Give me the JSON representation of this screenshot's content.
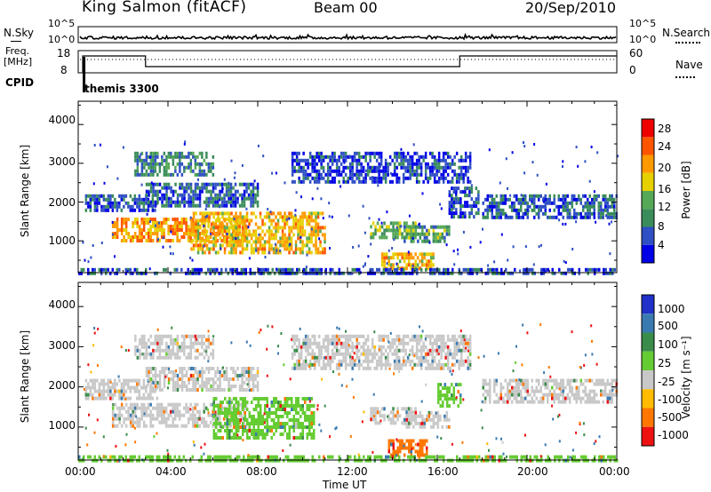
{
  "header": {
    "station": "King Salmon (fitACF)",
    "beam": "Beam 00",
    "date": "20/Sep/2010"
  },
  "top_panels": {
    "nsky_label": "N.Sky",
    "nsearch_label": "N.Search",
    "nsky_ticks": [
      "10^5",
      "10^0"
    ],
    "nsky_right_ticks": [
      "10^5",
      "10^0"
    ],
    "freq_label_1": "Freq.",
    "freq_label_2": "[MHz]",
    "freq_ticks": [
      "18",
      "8"
    ],
    "nave_label": "Nave",
    "nave_ticks": [
      "60",
      "0"
    ],
    "cpid_label": "CPID",
    "cpid_value": "themis 3300"
  },
  "power_panel": {
    "ylabel": "Slant Range [km]",
    "yticks": [
      "4000",
      "3000",
      "2000",
      "1000"
    ],
    "colorbar_label": "Power [dB]",
    "colorbar_ticks": [
      "28",
      "24",
      "20",
      "16",
      "12",
      "8",
      "4"
    ],
    "colors": [
      "#0000e6",
      "#2f4fc4",
      "#3a8c5a",
      "#55a855",
      "#e6d000",
      "#ff9900",
      "#ff5500",
      "#ee0000"
    ]
  },
  "velocity_panel": {
    "ylabel": "Slant Range [km]",
    "yticks": [
      "4000",
      "3000",
      "2000",
      "1000"
    ],
    "colorbar_label": "Velocity [m s⁻¹]",
    "colorbar_ticks": [
      "1000",
      "500",
      "100",
      "25",
      "-25",
      "-100",
      "-500",
      "-1000"
    ],
    "colors": [
      "#2030c8",
      "#3a7ab0",
      "#3a8c4a",
      "#66cc33",
      "#c8c8c8",
      "#ffbb00",
      "#ff7700",
      "#ee1111"
    ]
  },
  "xaxis": {
    "label": "Time UT",
    "ticks": [
      "00:00",
      "04:00",
      "08:00",
      "12:00",
      "16:00",
      "20:00",
      "00:00"
    ]
  },
  "chart_data": [
    {
      "type": "heatmap",
      "title": "King Salmon (fitACF)",
      "subtitle": "Beam 00",
      "xlabel": "Time UT",
      "ylabel": "Slant Range [km]",
      "xlim": [
        0,
        24
      ],
      "ylim": [
        180,
        4600
      ],
      "colorbar": {
        "label": "Power [dB]",
        "range": [
          0,
          32
        ]
      },
      "regions": [
        {
          "t": [
            0.3,
            3.5
          ],
          "r": [
            1750,
            2200
          ],
          "v": 6
        },
        {
          "t": [
            1.5,
            7.5
          ],
          "r": [
            1000,
            1600
          ],
          "v": 22
        },
        {
          "t": [
            5.0,
            11.0
          ],
          "r": [
            700,
            1750
          ],
          "v": 20
        },
        {
          "t": [
            3.0,
            8.0
          ],
          "r": [
            1900,
            2500
          ],
          "v": 7
        },
        {
          "t": [
            2.5,
            6.0
          ],
          "r": [
            2700,
            3300
          ],
          "v": 10
        },
        {
          "t": [
            9.5,
            17.5
          ],
          "r": [
            2500,
            3300
          ],
          "v": 5
        },
        {
          "t": [
            13.0,
            15.0
          ],
          "r": [
            1100,
            1500
          ],
          "v": 14
        },
        {
          "t": [
            14.5,
            16.5
          ],
          "r": [
            1000,
            1400
          ],
          "v": 12
        },
        {
          "t": [
            13.5,
            15.8
          ],
          "r": [
            300,
            700
          ],
          "v": 20
        },
        {
          "t": [
            16.5,
            17.8
          ],
          "r": [
            1600,
            2400
          ],
          "v": 6
        },
        {
          "t": [
            18.0,
            24.0
          ],
          "r": [
            1600,
            2200
          ],
          "v": 7
        },
        {
          "t": [
            0.0,
            24.0
          ],
          "r": [
            180,
            300
          ],
          "v": 6
        }
      ]
    },
    {
      "type": "heatmap",
      "xlabel": "Time UT",
      "ylabel": "Slant Range [km]",
      "xlim": [
        0,
        24
      ],
      "ylim": [
        180,
        4600
      ],
      "colorbar": {
        "label": "Velocity [m s⁻¹]",
        "range": [
          -1000,
          1000
        ]
      },
      "regions": [
        {
          "t": [
            0.3,
            3.5
          ],
          "r": [
            1750,
            2200
          ],
          "v": 0
        },
        {
          "t": [
            1.5,
            7.5
          ],
          "r": [
            1000,
            1600
          ],
          "v": 0
        },
        {
          "t": [
            6.0,
            10.5
          ],
          "r": [
            700,
            1750
          ],
          "v": 60
        },
        {
          "t": [
            3.0,
            8.0
          ],
          "r": [
            1900,
            2500
          ],
          "v": 0
        },
        {
          "t": [
            2.5,
            6.0
          ],
          "r": [
            2700,
            3300
          ],
          "v": 0
        },
        {
          "t": [
            9.5,
            17.5
          ],
          "r": [
            2500,
            3300
          ],
          "v": 0
        },
        {
          "t": [
            13.0,
            15.0
          ],
          "r": [
            1100,
            1500
          ],
          "v": 0
        },
        {
          "t": [
            14.5,
            16.5
          ],
          "r": [
            1000,
            1400
          ],
          "v": 0
        },
        {
          "t": [
            13.8,
            15.5
          ],
          "r": [
            300,
            700
          ],
          "v": -150
        },
        {
          "t": [
            16.0,
            17.0
          ],
          "r": [
            1500,
            2100
          ],
          "v": 60
        },
        {
          "t": [
            18.0,
            24.0
          ],
          "r": [
            1600,
            2200
          ],
          "v": 0
        },
        {
          "t": [
            0.0,
            24.0
          ],
          "r": [
            180,
            300
          ],
          "v": 60
        }
      ]
    }
  ]
}
